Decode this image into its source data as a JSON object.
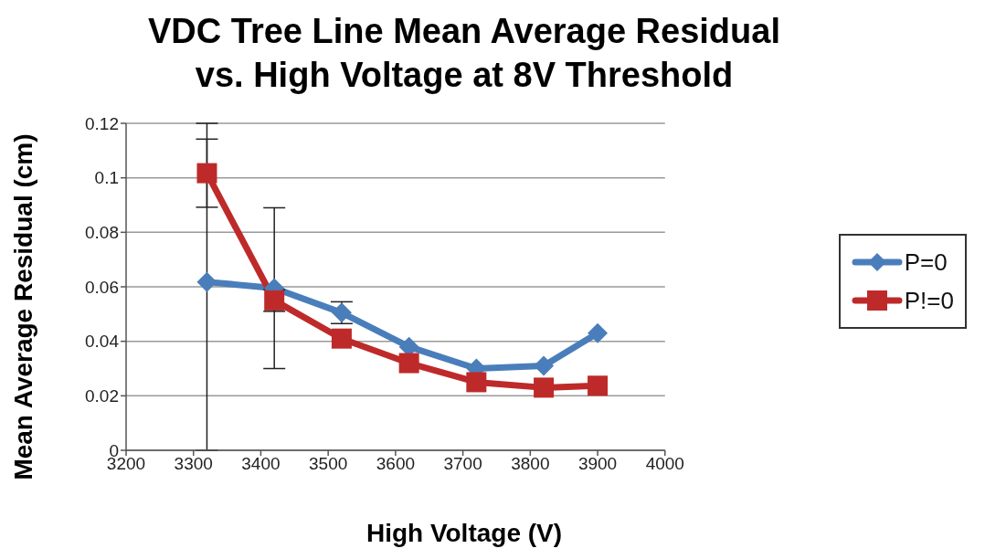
{
  "chart_data": {
    "type": "line",
    "title": "VDC Tree Line Mean Average Residual\nvs. High Voltage at 8V Threshold",
    "xlabel": "High Voltage (V)",
    "ylabel": "Mean Average Residual (cm)",
    "x": [
      3320,
      3420,
      3520,
      3620,
      3720,
      3820,
      3900
    ],
    "series": [
      {
        "name": "P=0",
        "color": "#4a7ebb",
        "marker": "diamond",
        "values": [
          0.0618,
          0.0595,
          0.0505,
          0.038,
          0.03,
          0.031,
          0.043
        ],
        "errors": [
          [
            0,
            0.12
          ],
          0.0295,
          0.004,
          null,
          null,
          null,
          null
        ]
      },
      {
        "name": "P!=0",
        "color": "#be2a2a",
        "marker": "square",
        "values": [
          0.1017,
          0.055,
          0.041,
          0.032,
          0.025,
          0.023,
          0.0237
        ],
        "errors": [
          0.0125,
          0.004,
          null,
          null,
          null,
          null,
          null
        ]
      }
    ],
    "xlim": [
      3200,
      4000
    ],
    "xticks": [
      3200,
      3300,
      3400,
      3500,
      3600,
      3700,
      3800,
      3900,
      4000
    ],
    "ylim": [
      0,
      0.12
    ],
    "yticks": [
      0,
      0.02,
      0.04,
      0.06,
      0.08,
      0.1,
      0.12
    ],
    "grid": "y",
    "legend": "right"
  }
}
